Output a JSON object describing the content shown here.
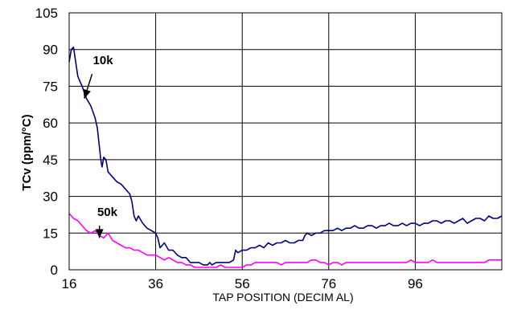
{
  "chart_data": {
    "type": "line",
    "title": "",
    "xlabel": "TAP POSITION (DECIM AL)",
    "ylabel": "TCv (ppm/°C)",
    "xlim": [
      16,
      116
    ],
    "ylim": [
      0,
      105
    ],
    "xticks": [
      16,
      36,
      56,
      76,
      96
    ],
    "yticks": [
      0,
      15,
      30,
      45,
      60,
      75,
      90,
      105
    ],
    "xtick_labels": [
      "16",
      "36",
      "56",
      "76",
      "96"
    ],
    "ytick_labels": [
      "0",
      "15",
      "30",
      "45",
      "60",
      "75",
      "90",
      "105"
    ],
    "grid": true,
    "legend": "none",
    "series": [
      {
        "name": "10k",
        "color": "#000080",
        "x": [
          16,
          16.5,
          17,
          17.5,
          18,
          19,
          20,
          21,
          22,
          22.5,
          23,
          23.3,
          23.6,
          24,
          24.5,
          25,
          26,
          27,
          28,
          29,
          30,
          30.5,
          31,
          31.5,
          32,
          33,
          34,
          35,
          36,
          36.5,
          37,
          38,
          39,
          40,
          41,
          42,
          43,
          44,
          45,
          46,
          47,
          48,
          48.5,
          49,
          50,
          51,
          52,
          53,
          54,
          54.5,
          55,
          56,
          57,
          58,
          59,
          60,
          61,
          62,
          63,
          64,
          65,
          66,
          67,
          68,
          69,
          70,
          70.5,
          71,
          72,
          73,
          74,
          75,
          76,
          77,
          78,
          79,
          80,
          81,
          82,
          83,
          84,
          85,
          86,
          87,
          88,
          89,
          90,
          91,
          92,
          93,
          94,
          95,
          96,
          97,
          98,
          99,
          100,
          101,
          102,
          103,
          104,
          105,
          106,
          107,
          108,
          109,
          110,
          111,
          112,
          113,
          114,
          115,
          116
        ],
        "values": [
          85,
          90,
          91,
          85,
          79,
          75,
          70,
          67,
          62,
          58,
          50,
          45,
          42,
          46,
          45,
          40,
          38,
          36,
          35,
          33,
          31,
          28,
          22,
          20,
          22,
          19,
          17,
          16,
          15,
          13,
          9,
          11,
          8,
          8,
          6,
          5,
          5,
          3,
          3,
          3,
          2,
          2,
          3,
          2,
          3,
          3,
          3,
          3,
          4,
          8,
          7,
          8,
          8,
          9,
          9,
          10,
          9,
          11,
          10,
          11,
          11,
          12,
          11,
          11,
          12,
          12,
          14,
          15,
          14,
          15,
          15,
          16,
          16,
          16,
          17,
          16,
          17,
          17,
          18,
          17,
          17,
          18,
          18,
          17,
          18,
          18,
          19,
          18,
          18,
          19,
          18,
          19,
          19,
          18,
          19,
          19,
          20,
          20,
          19,
          20,
          20,
          19,
          20,
          21,
          19,
          20,
          21,
          21,
          20,
          22,
          21,
          21,
          22
        ]
      },
      {
        "name": "50k",
        "color": "#FF00FF",
        "x": [
          16,
          17,
          18,
          19,
          20,
          21,
          22,
          23,
          24,
          25,
          26,
          27,
          28,
          29,
          30,
          31,
          32,
          33,
          34,
          35,
          36,
          37,
          38,
          39,
          40,
          41,
          42,
          43,
          44,
          45,
          46,
          47,
          48,
          49,
          50,
          51,
          52,
          53,
          54,
          55,
          56,
          57,
          58,
          59,
          60,
          61,
          62,
          63,
          64,
          65,
          66,
          67,
          68,
          69,
          70,
          71,
          72,
          73,
          74,
          75,
          76,
          77,
          78,
          79,
          80,
          81,
          82,
          83,
          84,
          85,
          86,
          87,
          88,
          89,
          90,
          91,
          92,
          93,
          94,
          95,
          96,
          97,
          98,
          99,
          100,
          101,
          102,
          103,
          104,
          105,
          106,
          107,
          108,
          109,
          110,
          111,
          112,
          113,
          114,
          115,
          116
        ],
        "values": [
          23,
          21,
          20,
          18,
          16,
          15,
          16,
          14,
          13,
          15,
          12,
          11,
          10,
          9,
          9,
          8,
          8,
          7,
          6,
          6,
          6,
          5,
          4,
          5,
          4,
          3,
          3,
          2,
          2,
          1,
          1,
          1,
          1,
          1,
          1,
          2,
          1,
          1,
          1,
          1,
          1,
          2,
          2,
          3,
          3,
          3,
          3,
          3,
          3,
          2,
          3,
          3,
          3,
          3,
          3,
          3,
          4,
          4,
          3,
          3,
          2,
          3,
          3,
          2,
          3,
          3,
          3,
          3,
          3,
          3,
          3,
          3,
          3,
          3,
          3,
          3,
          3,
          3,
          3,
          4,
          3,
          3,
          3,
          3,
          4,
          3,
          3,
          3,
          3,
          3,
          3,
          3,
          3,
          3,
          3,
          3,
          3,
          4,
          4,
          4,
          4
        ]
      }
    ],
    "annotations": [
      {
        "label": "10k",
        "text_x": 21.5,
        "text_y": 84,
        "arrow_from": [
          21.3,
          80
        ],
        "arrow_to": [
          19.5,
          70
        ]
      },
      {
        "label": "50k",
        "text_x": 22.5,
        "text_y": 22,
        "arrow_from": [
          23.0,
          18
        ],
        "arrow_to": [
          23.0,
          13
        ]
      }
    ]
  }
}
